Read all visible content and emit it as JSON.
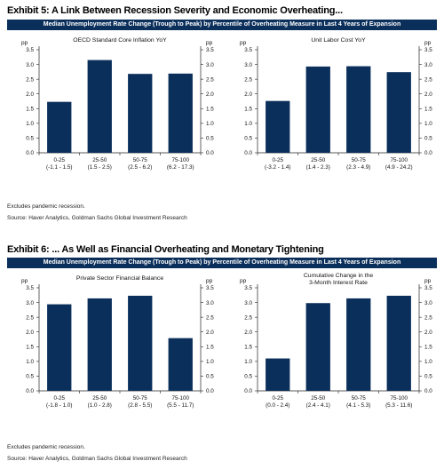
{
  "exhibit5": {
    "title": "Exhibit 5: A Link Between Recession Severity and Economic Overheating...",
    "banner": "Median Unemployment Rate Change (Trough to Peak) by Percentile of Overheating Measure in Last 4 Years of Expansion",
    "note": "Excludes pandemic recession.",
    "source": "Source: Haver Analytics, Goldman Sachs Global Investment Research"
  },
  "exhibit6": {
    "title": "Exhibit 6: ... As Well as Financial Overheating and Monetary Tightening",
    "banner": "Median Unemployment Rate Change (Trough to Peak) by Percentile of Overheating Measure in Last 4 Years of Expansion",
    "note": "Excludes pandemic recession.",
    "source": "Source: Haver Analytics, Goldman Sachs Global Investment Research"
  },
  "colors": {
    "bar": "#0b2f5b",
    "banner": "#0b2f5b"
  },
  "chart_data": [
    {
      "type": "bar",
      "title": "OECD Standard Core Inflation YoY",
      "unit_left": "pp",
      "unit_right": "pp",
      "categories": [
        "0-25",
        "25-50",
        "50-75",
        "75-100"
      ],
      "category_ranges": [
        "(-1.1 - 1.5)",
        "(1.5 - 2.5)",
        "(2.5 - 6.2)",
        "(6.2 - 17.3)"
      ],
      "values": [
        1.73,
        3.15,
        2.68,
        2.69
      ],
      "ylim": [
        0,
        3.5
      ],
      "yticks": [
        "0.0",
        "0.5",
        "1.0",
        "1.5",
        "2.0",
        "2.5",
        "3.0",
        "3.5"
      ]
    },
    {
      "type": "bar",
      "title": "Unit Labor Cost YoY",
      "unit_left": "pp",
      "unit_right": "pp",
      "categories": [
        "0-25",
        "25-50",
        "50-75",
        "75-100"
      ],
      "category_ranges": [
        "(-3.2 - 1.4)",
        "(1.4 - 2.3)",
        "(2.3 - 4.9)",
        "(4.9 - 24.2)"
      ],
      "values": [
        1.76,
        2.93,
        2.94,
        2.74
      ],
      "ylim": [
        0,
        3.5
      ],
      "yticks": [
        "0.0",
        "0.5",
        "1.0",
        "1.5",
        "2.0",
        "2.5",
        "3.0",
        "3.5"
      ]
    },
    {
      "type": "bar",
      "title": "Private Sector Financial Balance",
      "unit_left": "pp",
      "unit_right": "pp",
      "categories": [
        "0-25",
        "25-50",
        "50-75",
        "75-100"
      ],
      "category_ranges": [
        "(-1.8 - 1.0)",
        "(1.0 - 2.8)",
        "(2.8 - 5.5)",
        "(5.5 - 11.7)"
      ],
      "values": [
        2.94,
        3.14,
        3.23,
        1.79
      ],
      "ylim": [
        0,
        3.5
      ],
      "yticks": [
        "0.0",
        "0.5",
        "1.0",
        "1.5",
        "2.0",
        "2.5",
        "3.0",
        "3.5"
      ]
    },
    {
      "type": "bar",
      "title": "Cumulative Change in the 3-Month Interest Rate",
      "title_lines": [
        "Cumulative Change in the",
        "3-Month Interest Rate"
      ],
      "unit_left": "pp",
      "unit_right": "pp",
      "categories": [
        "0-25",
        "25-50",
        "50-75",
        "75-100"
      ],
      "category_ranges": [
        "(0.0 - 2.4)",
        "(2.4 - 4.1)",
        "(4.1 - 5.3)",
        "(5.3 - 11.6)"
      ],
      "values": [
        1.1,
        2.98,
        3.14,
        3.23
      ],
      "ylim": [
        0,
        3.5
      ],
      "yticks": [
        "0.0",
        "0.5",
        "1.0",
        "1.5",
        "2.0",
        "2.5",
        "3.0",
        "3.5"
      ]
    }
  ]
}
